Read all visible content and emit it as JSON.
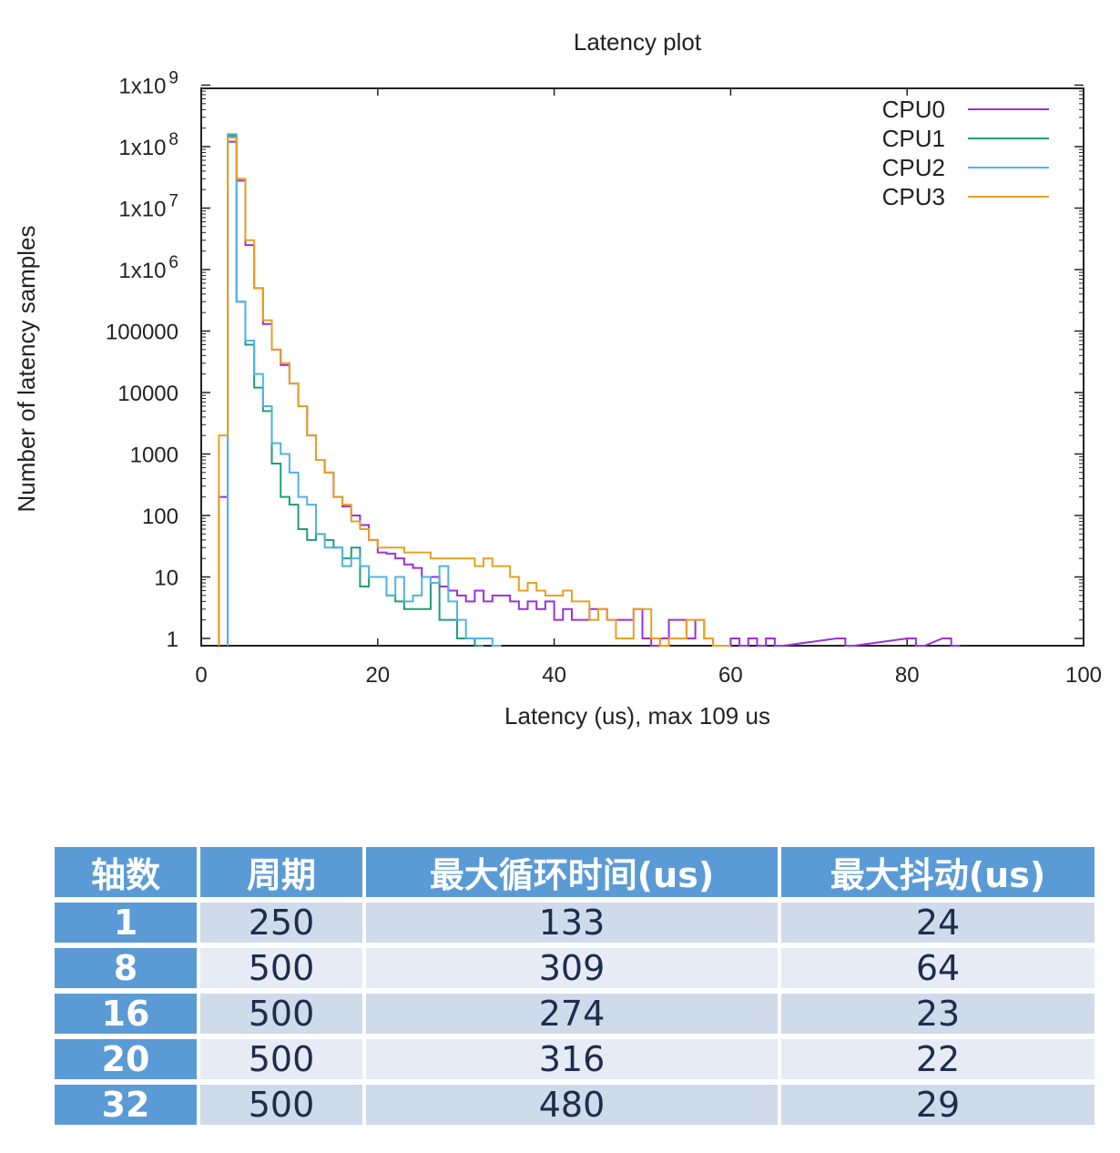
{
  "chart_data": {
    "type": "line",
    "title": "Latency plot",
    "xlabel": "Latency (us), max 109 us",
    "ylabel": "Number of latency samples",
    "xlim": [
      0,
      100
    ],
    "ylim": [
      0.8,
      1000000000
    ],
    "yscale": "log",
    "xticks": [
      0,
      20,
      40,
      60,
      80,
      100
    ],
    "xtick_labels": [
      "0",
      "20",
      "40",
      "60",
      "80",
      "100"
    ],
    "ytick_labels": [
      "1",
      "10",
      "100",
      "1000",
      "10000",
      "100000",
      "1x10 6",
      "1x10 7",
      "1x10 8",
      "1x10 9"
    ],
    "grid": false,
    "legend_position": "top-right",
    "series": [
      {
        "name": "CPU0",
        "color": "#9b30d9",
        "x": [
          2,
          3,
          4,
          5,
          6,
          7,
          8,
          9,
          10,
          11,
          12,
          13,
          14,
          15,
          16,
          17,
          18,
          19,
          20,
          21,
          22,
          23,
          24,
          25,
          26,
          27,
          28,
          29,
          30,
          31,
          32,
          33,
          34,
          35,
          36,
          37,
          38,
          39,
          40,
          41,
          42,
          43,
          44,
          45,
          46,
          47,
          48,
          49,
          50,
          51,
          52,
          53,
          54,
          55,
          56,
          57,
          58,
          59,
          60,
          61,
          62,
          63,
          64,
          65,
          72,
          73,
          80,
          81,
          84,
          85
        ],
        "y": [
          200,
          120000000,
          28000000,
          2500000,
          500000,
          130000,
          50000,
          28000,
          14000,
          6000,
          2000,
          800,
          500,
          200,
          140,
          100,
          70,
          40,
          25,
          24,
          20,
          16,
          14,
          10,
          10,
          7,
          6,
          5,
          4,
          6,
          4,
          5,
          5,
          4,
          3,
          4,
          3,
          4,
          2,
          3,
          2,
          2,
          3,
          3,
          2,
          2,
          2,
          3,
          1,
          0,
          1,
          2,
          2,
          1,
          2,
          1,
          0,
          0,
          1,
          0,
          1,
          0,
          1,
          0,
          1,
          0,
          1,
          0,
          1,
          0
        ]
      },
      {
        "name": "CPU1",
        "color": "#1f9e77",
        "x": [
          3,
          4,
          5,
          6,
          7,
          8,
          9,
          10,
          11,
          12,
          13,
          14,
          15,
          16,
          17,
          18,
          19,
          20,
          21,
          22,
          23,
          24,
          25,
          26,
          27,
          28,
          29,
          30,
          31
        ],
        "y": [
          150000000,
          300000,
          60000,
          12000,
          5000,
          700,
          200,
          150,
          60,
          40,
          50,
          40,
          30,
          20,
          30,
          7,
          10,
          10,
          5,
          4,
          3,
          3,
          3,
          8,
          2,
          2,
          1,
          1,
          0
        ]
      },
      {
        "name": "CPU2",
        "color": "#4fb3e8",
        "x": [
          3,
          4,
          5,
          6,
          7,
          8,
          9,
          10,
          11,
          12,
          13,
          14,
          15,
          16,
          17,
          18,
          19,
          20,
          21,
          22,
          23,
          24,
          25,
          26,
          27,
          28,
          29,
          30,
          31,
          32,
          33
        ],
        "y": [
          160000000,
          300000,
          70000,
          20000,
          6000,
          1500,
          1000,
          500,
          200,
          150,
          50,
          30,
          30,
          15,
          20,
          15,
          10,
          10,
          5,
          10,
          4,
          5,
          10,
          8,
          15,
          4,
          2,
          1,
          1,
          1,
          0
        ]
      },
      {
        "name": "CPU3",
        "color": "#e8a020",
        "x": [
          2,
          3,
          4,
          5,
          6,
          7,
          8,
          9,
          10,
          11,
          12,
          13,
          14,
          15,
          16,
          17,
          18,
          19,
          20,
          21,
          22,
          23,
          24,
          25,
          26,
          27,
          28,
          29,
          30,
          31,
          32,
          33,
          34,
          35,
          36,
          37,
          38,
          39,
          40,
          41,
          42,
          43,
          44,
          45,
          46,
          47,
          48,
          49,
          50,
          51,
          52,
          53,
          54,
          55,
          56,
          57,
          58,
          59
        ],
        "y": [
          2000,
          140000000,
          30000000,
          3000000,
          500000,
          150000,
          50000,
          30000,
          14000,
          6000,
          2000,
          800,
          500,
          200,
          150,
          80,
          60,
          40,
          30,
          30,
          30,
          25,
          25,
          25,
          20,
          20,
          20,
          20,
          20,
          15,
          20,
          15,
          15,
          10,
          6,
          8,
          6,
          5,
          5,
          6,
          4,
          4,
          2,
          3,
          2,
          1,
          1,
          3,
          3,
          1,
          0,
          1,
          1,
          2,
          2,
          1,
          0,
          0
        ]
      }
    ]
  },
  "table": {
    "headers": [
      "轴数",
      "周期",
      "最大循环时间(us)",
      "最大抖动(us)"
    ],
    "rows": [
      [
        "1",
        "250",
        "133",
        "24"
      ],
      [
        "8",
        "500",
        "309",
        "64"
      ],
      [
        "16",
        "500",
        "274",
        "23"
      ],
      [
        "20",
        "500",
        "316",
        "22"
      ],
      [
        "32",
        "500",
        "480",
        "29"
      ]
    ]
  }
}
